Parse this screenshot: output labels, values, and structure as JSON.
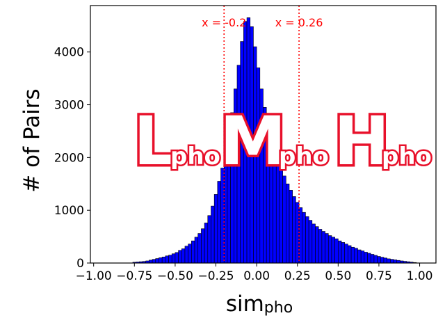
{
  "chart_data": {
    "type": "bar",
    "title": "",
    "xlabel": "sim",
    "xlabel_subscript": "pho",
    "ylabel": "# of Pairs",
    "xlim": [
      -1.02,
      1.1
    ],
    "ylim": [
      0,
      4880
    ],
    "bin_width": 0.02,
    "bar_color": "#0000ff",
    "edge_color": "#000000",
    "x_ticks": [
      -1.0,
      -0.75,
      -0.5,
      -0.25,
      0.0,
      0.25,
      0.5,
      0.75,
      1.0
    ],
    "x_tick_labels": [
      "−1.00",
      "−0.75",
      "−0.50",
      "−0.25",
      "0.00",
      "0.25",
      "0.50",
      "0.75",
      "1.00"
    ],
    "y_ticks": [
      0,
      1000,
      2000,
      3000,
      4000
    ],
    "y_tick_labels": [
      "0",
      "1000",
      "2000",
      "3000",
      "4000"
    ],
    "bins": [
      {
        "x": -0.75,
        "y": 15
      },
      {
        "x": -0.73,
        "y": 20
      },
      {
        "x": -0.71,
        "y": 25
      },
      {
        "x": -0.69,
        "y": 30
      },
      {
        "x": -0.67,
        "y": 40
      },
      {
        "x": -0.65,
        "y": 55
      },
      {
        "x": -0.63,
        "y": 70
      },
      {
        "x": -0.61,
        "y": 85
      },
      {
        "x": -0.59,
        "y": 100
      },
      {
        "x": -0.57,
        "y": 115
      },
      {
        "x": -0.55,
        "y": 135
      },
      {
        "x": -0.53,
        "y": 150
      },
      {
        "x": -0.51,
        "y": 175
      },
      {
        "x": -0.49,
        "y": 200
      },
      {
        "x": -0.47,
        "y": 240
      },
      {
        "x": -0.45,
        "y": 270
      },
      {
        "x": -0.43,
        "y": 320
      },
      {
        "x": -0.41,
        "y": 360
      },
      {
        "x": -0.39,
        "y": 420
      },
      {
        "x": -0.37,
        "y": 490
      },
      {
        "x": -0.35,
        "y": 560
      },
      {
        "x": -0.33,
        "y": 650
      },
      {
        "x": -0.31,
        "y": 760
      },
      {
        "x": -0.29,
        "y": 900
      },
      {
        "x": -0.27,
        "y": 1080
      },
      {
        "x": -0.25,
        "y": 1300
      },
      {
        "x": -0.23,
        "y": 1550
      },
      {
        "x": -0.21,
        "y": 1800
      },
      {
        "x": -0.19,
        "y": 2100
      },
      {
        "x": -0.17,
        "y": 2450
      },
      {
        "x": -0.15,
        "y": 2850
      },
      {
        "x": -0.13,
        "y": 3300
      },
      {
        "x": -0.11,
        "y": 3750
      },
      {
        "x": -0.09,
        "y": 4200
      },
      {
        "x": -0.07,
        "y": 4580
      },
      {
        "x": -0.05,
        "y": 4650
      },
      {
        "x": -0.03,
        "y": 4480
      },
      {
        "x": -0.01,
        "y": 4100
      },
      {
        "x": 0.01,
        "y": 3700
      },
      {
        "x": 0.03,
        "y": 3300
      },
      {
        "x": 0.05,
        "y": 2950
      },
      {
        "x": 0.07,
        "y": 2650
      },
      {
        "x": 0.09,
        "y": 2400
      },
      {
        "x": 0.11,
        "y": 2200
      },
      {
        "x": 0.13,
        "y": 2000
      },
      {
        "x": 0.15,
        "y": 1820
      },
      {
        "x": 0.17,
        "y": 1650
      },
      {
        "x": 0.19,
        "y": 1500
      },
      {
        "x": 0.21,
        "y": 1380
      },
      {
        "x": 0.23,
        "y": 1260
      },
      {
        "x": 0.25,
        "y": 1150
      },
      {
        "x": 0.27,
        "y": 1050
      },
      {
        "x": 0.29,
        "y": 960
      },
      {
        "x": 0.31,
        "y": 880
      },
      {
        "x": 0.33,
        "y": 810
      },
      {
        "x": 0.35,
        "y": 740
      },
      {
        "x": 0.37,
        "y": 690
      },
      {
        "x": 0.39,
        "y": 640
      },
      {
        "x": 0.41,
        "y": 600
      },
      {
        "x": 0.43,
        "y": 560
      },
      {
        "x": 0.45,
        "y": 520
      },
      {
        "x": 0.47,
        "y": 490
      },
      {
        "x": 0.49,
        "y": 460
      },
      {
        "x": 0.51,
        "y": 420
      },
      {
        "x": 0.53,
        "y": 390
      },
      {
        "x": 0.55,
        "y": 360
      },
      {
        "x": 0.57,
        "y": 330
      },
      {
        "x": 0.59,
        "y": 300
      },
      {
        "x": 0.61,
        "y": 280
      },
      {
        "x": 0.63,
        "y": 250
      },
      {
        "x": 0.65,
        "y": 230
      },
      {
        "x": 0.67,
        "y": 205
      },
      {
        "x": 0.69,
        "y": 185
      },
      {
        "x": 0.71,
        "y": 165
      },
      {
        "x": 0.73,
        "y": 145
      },
      {
        "x": 0.75,
        "y": 125
      },
      {
        "x": 0.77,
        "y": 110
      },
      {
        "x": 0.79,
        "y": 95
      },
      {
        "x": 0.81,
        "y": 80
      },
      {
        "x": 0.83,
        "y": 70
      },
      {
        "x": 0.85,
        "y": 60
      },
      {
        "x": 0.87,
        "y": 50
      },
      {
        "x": 0.89,
        "y": 40
      },
      {
        "x": 0.91,
        "y": 32
      },
      {
        "x": 0.93,
        "y": 25
      },
      {
        "x": 0.95,
        "y": 18
      },
      {
        "x": 0.97,
        "y": 10
      }
    ],
    "vlines": [
      {
        "x": -0.2,
        "label": "x = -0.2",
        "color": "#ff0000",
        "style": "dotted"
      },
      {
        "x": 0.26,
        "label": "x = 0.26",
        "color": "#ff0000",
        "style": "dotted"
      }
    ],
    "region_labels": [
      {
        "letter": "L",
        "subscript": "pho"
      },
      {
        "letter": "M",
        "subscript": "pho"
      },
      {
        "letter": "H",
        "subscript": "pho"
      }
    ],
    "region_label_colors": {
      "fill": "#ffffff",
      "outline": "#e8102a"
    }
  }
}
